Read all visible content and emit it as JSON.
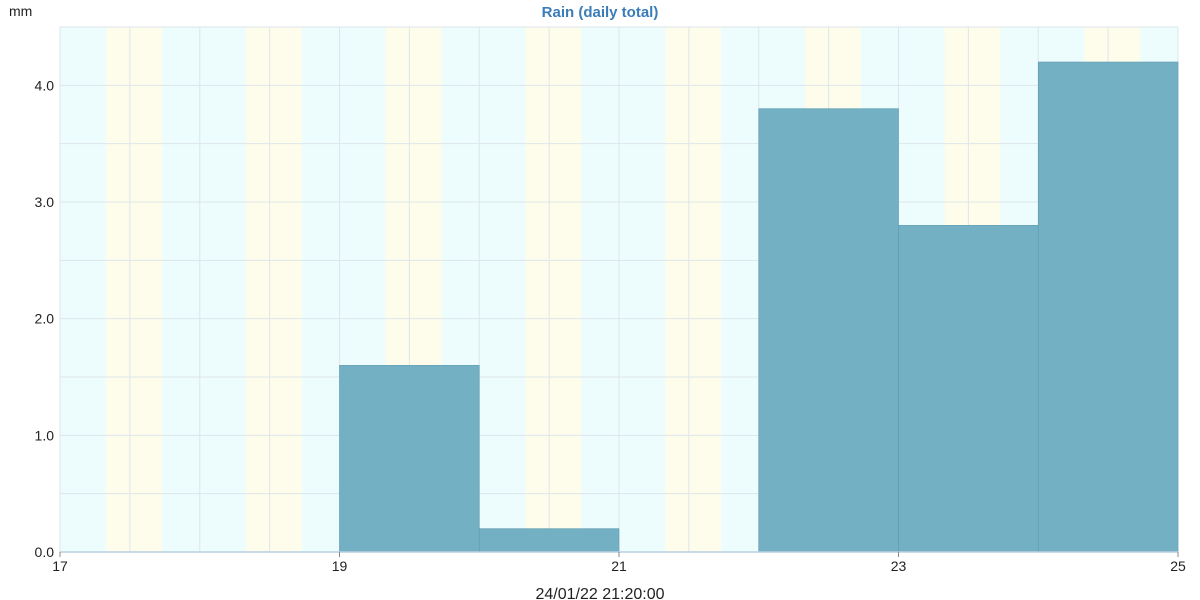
{
  "colors": {
    "title": "#3a7db8",
    "bar_fill": "#73b0c4",
    "bar_stroke": "#5f9cb0",
    "grid": "#dde6ea",
    "day_band": "#fefdec",
    "night_band": "#edfcfc",
    "axis": "#b9cfe0"
  },
  "chart_data": {
    "type": "bar",
    "title": "Rain (daily total)",
    "ylabel": "mm",
    "xlabel": "",
    "footer": "24/01/22 21:20:00",
    "x_range": [
      17,
      25
    ],
    "ylim": [
      0,
      4.5
    ],
    "x_ticks": [
      {
        "value": 17,
        "label": "17"
      },
      {
        "value": 19,
        "label": "19"
      },
      {
        "value": 21,
        "label": "21"
      },
      {
        "value": 23,
        "label": "23"
      },
      {
        "value": 25,
        "label": "25"
      }
    ],
    "y_ticks": [
      {
        "value": 0,
        "label": "0.0"
      },
      {
        "value": 1,
        "label": "1.0"
      },
      {
        "value": 2,
        "label": "2.0"
      },
      {
        "value": 3,
        "label": "3.0"
      },
      {
        "value": 4,
        "label": "4.0"
      }
    ],
    "bars": [
      {
        "start": 19,
        "end": 20,
        "value": 1.6
      },
      {
        "start": 20,
        "end": 21,
        "value": 0.2
      },
      {
        "start": 22,
        "end": 23,
        "value": 3.8
      },
      {
        "start": 23,
        "end": 24,
        "value": 2.8
      },
      {
        "start": 24,
        "end": 25,
        "value": 4.2
      }
    ],
    "daylight_bands": [
      [
        17.33,
        17.73
      ],
      [
        18.33,
        18.73
      ],
      [
        19.33,
        19.73
      ],
      [
        20.33,
        20.73
      ],
      [
        21.33,
        21.73
      ],
      [
        22.33,
        22.73
      ],
      [
        23.33,
        23.73
      ],
      [
        24.33,
        24.73
      ]
    ]
  }
}
